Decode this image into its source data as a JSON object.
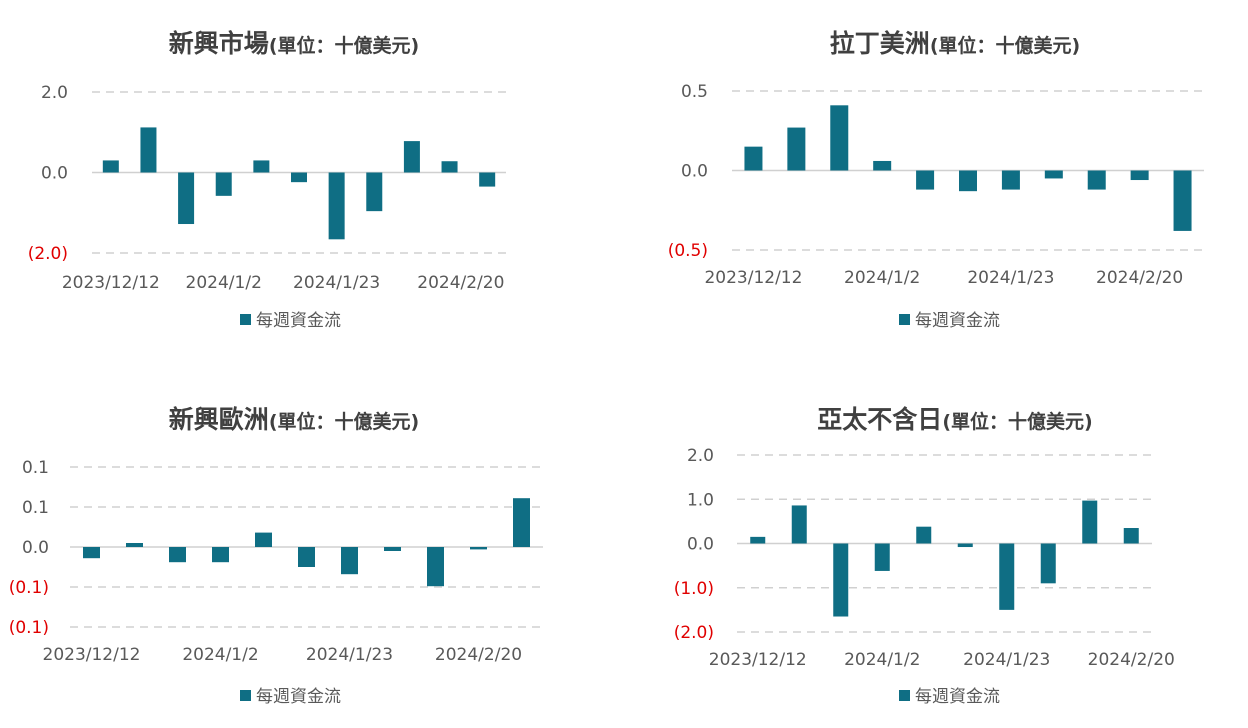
{
  "chart_data": [
    {
      "type": "bar",
      "title": "新興市場",
      "subtitle": "(單位：十億美元)",
      "series": [
        {
          "name": "每週資金流",
          "color": "#0f6e84",
          "values": [
            0.3,
            1.12,
            -1.28,
            -0.58,
            0.3,
            -0.24,
            -1.66,
            -0.96,
            0.78,
            0.28,
            -0.35
          ]
        }
      ],
      "yticks": [
        2.0,
        0.0,
        -2.0
      ],
      "ytick_labels": [
        "2.0",
        "0.0",
        "(2.0)"
      ],
      "ylim": [
        -2.0,
        2.0
      ],
      "xtick_labels": [
        "2023/12/12",
        "2024/1/2",
        "2024/1/23",
        "2024/2/20"
      ],
      "xtick_index": [
        0,
        3,
        6,
        9.3
      ],
      "grid": true,
      "legend": "bottom"
    },
    {
      "type": "bar",
      "title": "拉丁美洲",
      "subtitle": "(單位：十億美元)",
      "series": [
        {
          "name": "每週資金流",
          "color": "#0f6e84",
          "values": [
            0.15,
            0.27,
            0.41,
            0.06,
            -0.12,
            -0.13,
            -0.12,
            -0.05,
            -0.12,
            -0.06,
            -0.38
          ]
        }
      ],
      "yticks": [
        0.5,
        0.0,
        -0.5
      ],
      "ytick_labels": [
        "0.5",
        "0.0",
        "(0.5)"
      ],
      "ylim": [
        -0.5,
        0.5
      ],
      "xtick_labels": [
        "2023/12/12",
        "2024/1/2",
        "2024/1/23",
        "2024/2/20"
      ],
      "xtick_index": [
        0,
        3,
        6,
        9
      ],
      "grid": true,
      "legend": "bottom"
    },
    {
      "type": "bar",
      "title": "新興歐洲",
      "subtitle": "(單位：十億美元)",
      "series": [
        {
          "name": "每週資金流",
          "color": "#0f6e84",
          "values": [
            -0.014,
            0.005,
            -0.019,
            -0.019,
            0.018,
            -0.025,
            -0.034,
            -0.005,
            -0.049,
            -0.003,
            0.061
          ]
        }
      ],
      "yticks": [
        0.1,
        0.05,
        0.0,
        -0.05,
        -0.1
      ],
      "ytick_labels": [
        "0.1",
        "0.1",
        "0.0",
        "(0.1)",
        "(0.1)"
      ],
      "ylim": [
        -0.1,
        0.1
      ],
      "xtick_labels": [
        "2023/12/12",
        "2024/1/2",
        "2024/1/23",
        "2024/2/20"
      ],
      "xtick_index": [
        0,
        3,
        6,
        9
      ],
      "grid": true,
      "legend": "bottom"
    },
    {
      "type": "bar",
      "title": "亞太不含日",
      "subtitle": "(單位：十億美元)",
      "series": [
        {
          "name": "每週資金流",
          "color": "#0f6e84",
          "values": [
            0.15,
            0.86,
            -1.65,
            -0.62,
            0.38,
            -0.08,
            -1.5,
            -0.9,
            0.97,
            0.35
          ]
        }
      ],
      "yticks": [
        2.0,
        1.0,
        0.0,
        -1.0,
        -2.0
      ],
      "ytick_labels": [
        "2.0",
        "1.0",
        "0.0",
        "(1.0)",
        "(2.0)"
      ],
      "ylim": [
        -2.0,
        2.0
      ],
      "xtick_labels": [
        "2023/12/12",
        "2024/1/2",
        "2024/1/23",
        "2024/2/20"
      ],
      "xtick_index": [
        0,
        3,
        6,
        9
      ],
      "grid": true,
      "legend": "bottom"
    }
  ]
}
